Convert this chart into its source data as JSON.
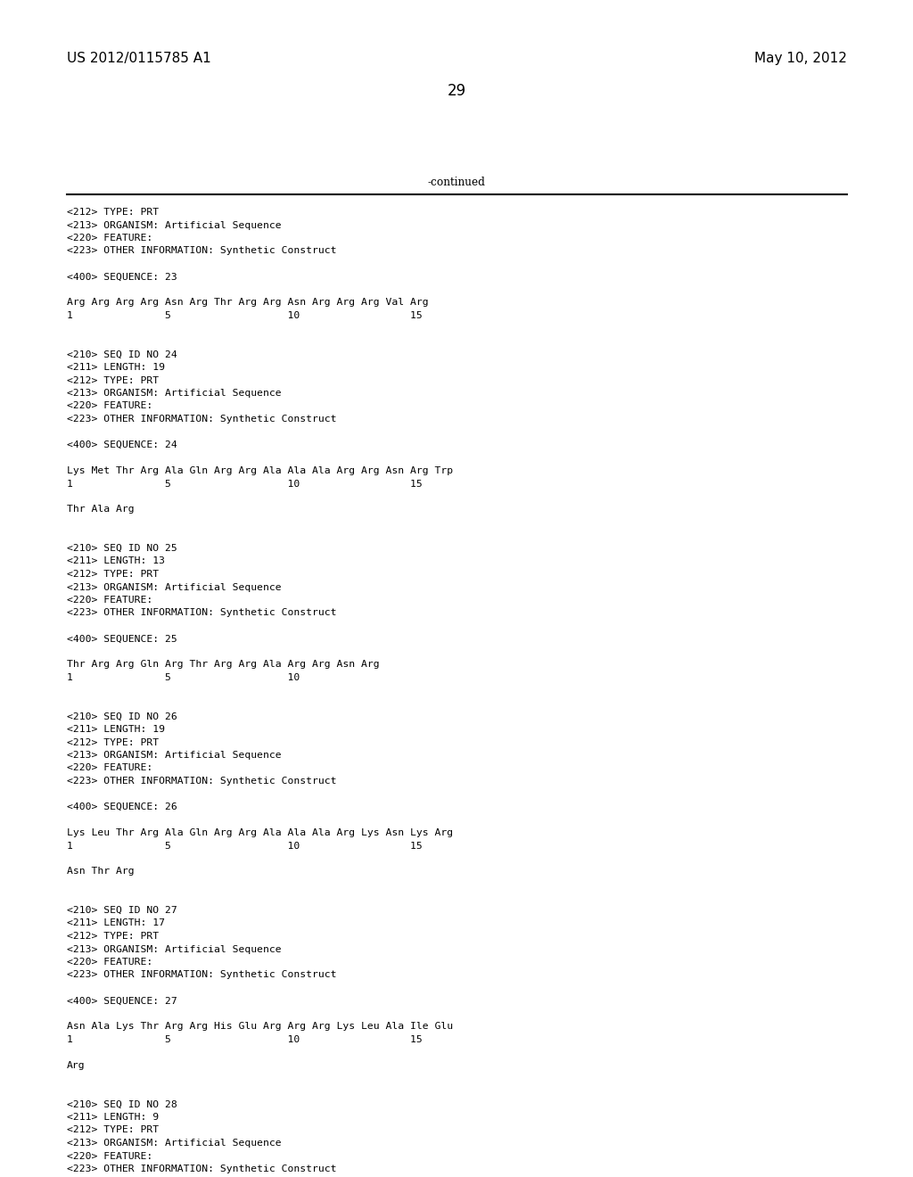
{
  "header_left": "US 2012/0115785 A1",
  "header_right": "May 10, 2012",
  "page_number": "29",
  "continued_label": "-continued",
  "background_color": "#ffffff",
  "text_color": "#000000",
  "font_size": 8.2,
  "header_font_size": 11.0,
  "page_num_font_size": 12.0,
  "content_lines": [
    "<212> TYPE: PRT",
    "<213> ORGANISM: Artificial Sequence",
    "<220> FEATURE:",
    "<223> OTHER INFORMATION: Synthetic Construct",
    "",
    "<400> SEQUENCE: 23",
    "",
    "Arg Arg Arg Arg Asn Arg Thr Arg Arg Asn Arg Arg Arg Val Arg",
    "1               5                   10                  15",
    "",
    "",
    "<210> SEQ ID NO 24",
    "<211> LENGTH: 19",
    "<212> TYPE: PRT",
    "<213> ORGANISM: Artificial Sequence",
    "<220> FEATURE:",
    "<223> OTHER INFORMATION: Synthetic Construct",
    "",
    "<400> SEQUENCE: 24",
    "",
    "Lys Met Thr Arg Ala Gln Arg Arg Ala Ala Ala Arg Arg Asn Arg Trp",
    "1               5                   10                  15",
    "",
    "Thr Ala Arg",
    "",
    "",
    "<210> SEQ ID NO 25",
    "<211> LENGTH: 13",
    "<212> TYPE: PRT",
    "<213> ORGANISM: Artificial Sequence",
    "<220> FEATURE:",
    "<223> OTHER INFORMATION: Synthetic Construct",
    "",
    "<400> SEQUENCE: 25",
    "",
    "Thr Arg Arg Gln Arg Thr Arg Arg Ala Arg Arg Asn Arg",
    "1               5                   10",
    "",
    "",
    "<210> SEQ ID NO 26",
    "<211> LENGTH: 19",
    "<212> TYPE: PRT",
    "<213> ORGANISM: Artificial Sequence",
    "<220> FEATURE:",
    "<223> OTHER INFORMATION: Synthetic Construct",
    "",
    "<400> SEQUENCE: 26",
    "",
    "Lys Leu Thr Arg Ala Gln Arg Arg Ala Ala Ala Arg Lys Asn Lys Arg",
    "1               5                   10                  15",
    "",
    "Asn Thr Arg",
    "",
    "",
    "<210> SEQ ID NO 27",
    "<211> LENGTH: 17",
    "<212> TYPE: PRT",
    "<213> ORGANISM: Artificial Sequence",
    "<220> FEATURE:",
    "<223> OTHER INFORMATION: Synthetic Construct",
    "",
    "<400> SEQUENCE: 27",
    "",
    "Asn Ala Lys Thr Arg Arg His Glu Arg Arg Arg Lys Leu Ala Ile Glu",
    "1               5                   10                  15",
    "",
    "Arg",
    "",
    "",
    "<210> SEQ ID NO 28",
    "<211> LENGTH: 9",
    "<212> TYPE: PRT",
    "<213> ORGANISM: Artificial Sequence",
    "<220> FEATURE:",
    "<223> OTHER INFORMATION: Synthetic Construct"
  ]
}
